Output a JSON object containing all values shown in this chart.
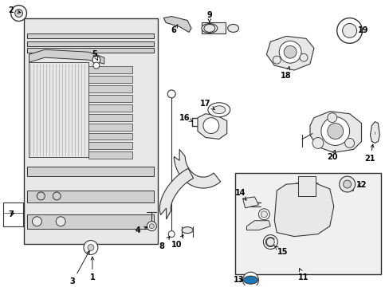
{
  "background_color": "#ffffff",
  "fig_width": 4.89,
  "fig_height": 3.6,
  "dpi": 100,
  "line_color": "#333333",
  "fill_light": "#e8e8e8",
  "fill_mid": "#d0d0d0",
  "fill_dark": "#b0b0b0"
}
